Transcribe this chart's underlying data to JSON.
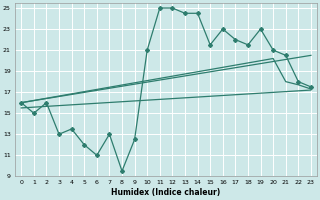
{
  "xlabel": "Humidex (Indice chaleur)",
  "xlim": [
    -0.5,
    23.5
  ],
  "ylim": [
    9,
    25.5
  ],
  "yticks": [
    9,
    11,
    13,
    15,
    17,
    19,
    21,
    23,
    25
  ],
  "xticks": [
    0,
    1,
    2,
    3,
    4,
    5,
    6,
    7,
    8,
    9,
    10,
    11,
    12,
    13,
    14,
    15,
    16,
    17,
    18,
    19,
    20,
    21,
    22,
    23
  ],
  "bg_color": "#cde8e8",
  "grid_color": "#ffffff",
  "line_color": "#2e7d6e",
  "line1_x": [
    0,
    1,
    2,
    3,
    4,
    5,
    6,
    7,
    8,
    9,
    10,
    11,
    12,
    13,
    14,
    15,
    16,
    17,
    18,
    19,
    20,
    21,
    22,
    23
  ],
  "line1_y": [
    16,
    15,
    16,
    13,
    13.5,
    12,
    11,
    13,
    9.5,
    12.5,
    21,
    25,
    25,
    24.5,
    24.5,
    21.5,
    23,
    22,
    21.5,
    23,
    21,
    20.5,
    18,
    17.5
  ],
  "line2_x": [
    0,
    23
  ],
  "line2_y": [
    16,
    20.5
  ],
  "line3_x": [
    0,
    20,
    21,
    22,
    23
  ],
  "line3_y": [
    16,
    20.2,
    18,
    17.7,
    17.3
  ],
  "line4_x": [
    0,
    23
  ],
  "line4_y": [
    15.5,
    17.2
  ]
}
